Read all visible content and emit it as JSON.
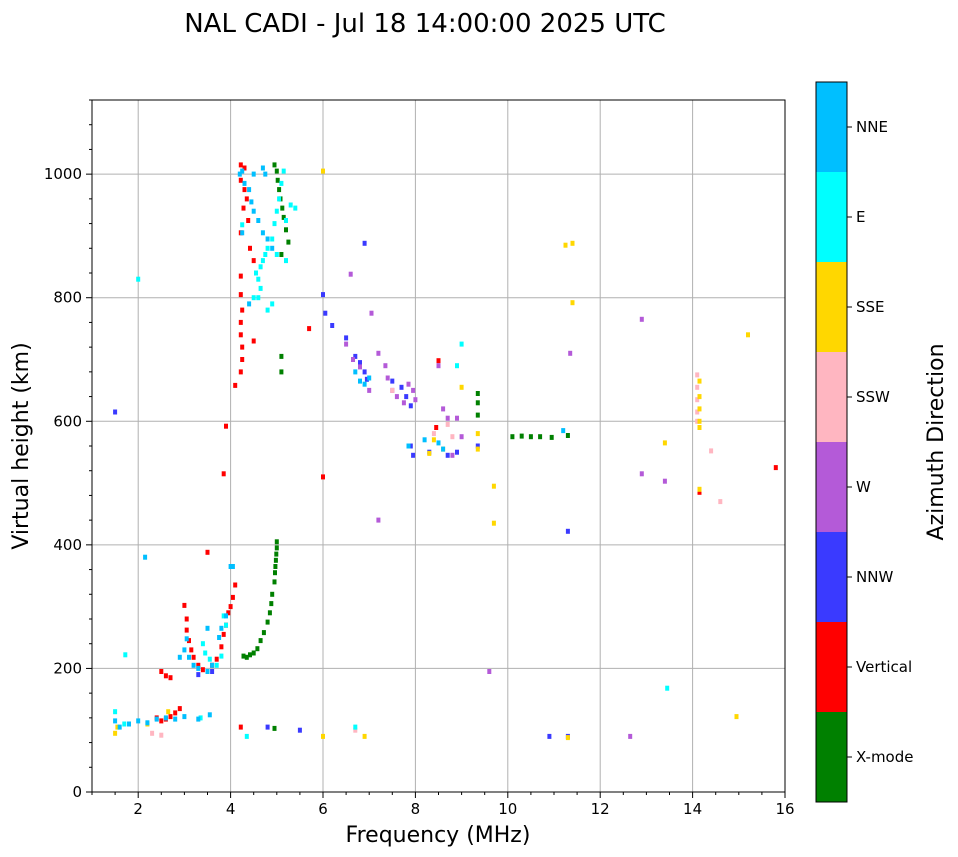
{
  "chart_data": {
    "type": "scatter",
    "title": "NAL CADI - Jul 18 14:00:00 2025 UTC",
    "xlabel": "Frequency (MHz)",
    "ylabel": "Virtual height (km)",
    "xlim": [
      1,
      16
    ],
    "ylim": [
      0,
      1120
    ],
    "x_ticks": [
      2,
      4,
      6,
      8,
      10,
      12,
      14,
      16
    ],
    "y_ticks": [
      0,
      200,
      400,
      600,
      800,
      1000
    ],
    "grid": true,
    "colorbar": {
      "label": "Azimuth Direction",
      "categories": [
        {
          "name": "X-mode",
          "color": "#008000"
        },
        {
          "name": "Vertical",
          "color": "#ff0000"
        },
        {
          "name": "NNW",
          "color": "#3a3aff"
        },
        {
          "name": "W",
          "color": "#b45ad8"
        },
        {
          "name": "SSW",
          "color": "#ffb6c1"
        },
        {
          "name": "SSE",
          "color": "#ffd700"
        },
        {
          "name": "E",
          "color": "#00ffff"
        },
        {
          "name": "NNE",
          "color": "#00bfff"
        }
      ]
    },
    "series": [
      {
        "name": "X-mode",
        "color": "#008000",
        "points": [
          [
            4.28,
            220
          ],
          [
            4.35,
            218
          ],
          [
            4.42,
            222
          ],
          [
            4.5,
            225
          ],
          [
            4.58,
            232
          ],
          [
            4.65,
            245
          ],
          [
            4.72,
            258
          ],
          [
            4.8,
            275
          ],
          [
            4.85,
            290
          ],
          [
            4.88,
            305
          ],
          [
            4.9,
            320
          ],
          [
            4.95,
            340
          ],
          [
            4.96,
            355
          ],
          [
            4.97,
            365
          ],
          [
            4.98,
            375
          ],
          [
            4.99,
            385
          ],
          [
            5.0,
            395
          ],
          [
            5.0,
            405
          ],
          [
            4.95,
            1015
          ],
          [
            5.0,
            1005
          ],
          [
            5.02,
            990
          ],
          [
            5.05,
            975
          ],
          [
            5.08,
            960
          ],
          [
            5.12,
            945
          ],
          [
            5.15,
            930
          ],
          [
            5.2,
            910
          ],
          [
            5.25,
            890
          ],
          [
            5.1,
            870
          ],
          [
            5.1,
            705
          ],
          [
            5.1,
            680
          ],
          [
            9.35,
            645
          ],
          [
            9.35,
            630
          ],
          [
            9.35,
            610
          ],
          [
            10.1,
            575
          ],
          [
            10.3,
            576
          ],
          [
            10.5,
            575
          ],
          [
            10.7,
            575
          ],
          [
            10.95,
            574
          ],
          [
            11.3,
            577
          ],
          [
            4.95,
            103
          ]
        ]
      },
      {
        "name": "Vertical",
        "color": "#ff0000",
        "points": [
          [
            4.22,
            1015
          ],
          [
            4.3,
            1010
          ],
          [
            4.22,
            990
          ],
          [
            4.3,
            975
          ],
          [
            4.35,
            960
          ],
          [
            4.28,
            945
          ],
          [
            4.38,
            925
          ],
          [
            4.22,
            905
          ],
          [
            4.42,
            880
          ],
          [
            4.5,
            860
          ],
          [
            4.22,
            835
          ],
          [
            4.22,
            805
          ],
          [
            4.25,
            780
          ],
          [
            4.22,
            760
          ],
          [
            4.22,
            740
          ],
          [
            4.25,
            720
          ],
          [
            4.25,
            700
          ],
          [
            4.22,
            680
          ],
          [
            4.1,
            658
          ],
          [
            4.5,
            730
          ],
          [
            5.7,
            750
          ],
          [
            3.9,
            592
          ],
          [
            3.85,
            515
          ],
          [
            6.0,
            510
          ],
          [
            3.0,
            302
          ],
          [
            3.05,
            280
          ],
          [
            3.05,
            262
          ],
          [
            3.1,
            245
          ],
          [
            3.15,
            230
          ],
          [
            3.2,
            218
          ],
          [
            3.3,
            205
          ],
          [
            3.4,
            198
          ],
          [
            3.5,
            195
          ],
          [
            3.6,
            205
          ],
          [
            3.7,
            215
          ],
          [
            3.8,
            235
          ],
          [
            3.85,
            255
          ],
          [
            3.9,
            270
          ],
          [
            3.95,
            290
          ],
          [
            4.0,
            300
          ],
          [
            4.05,
            315
          ],
          [
            4.1,
            335
          ],
          [
            3.5,
            388
          ],
          [
            2.5,
            195
          ],
          [
            2.6,
            188
          ],
          [
            2.7,
            185
          ],
          [
            2.4,
            120
          ],
          [
            2.5,
            115
          ],
          [
            2.6,
            118
          ],
          [
            2.7,
            122
          ],
          [
            2.8,
            128
          ],
          [
            2.9,
            135
          ],
          [
            4.22,
            105
          ],
          [
            8.45,
            590
          ],
          [
            8.5,
            698
          ],
          [
            14.15,
            485
          ],
          [
            15.8,
            525
          ]
        ]
      },
      {
        "name": "NNW",
        "color": "#3a3aff",
        "points": [
          [
            1.5,
            615
          ],
          [
            6.0,
            805
          ],
          [
            6.05,
            775
          ],
          [
            6.2,
            755
          ],
          [
            6.5,
            735
          ],
          [
            6.7,
            705
          ],
          [
            6.8,
            695
          ],
          [
            6.9,
            680
          ],
          [
            6.95,
            668
          ],
          [
            7.5,
            665
          ],
          [
            7.7,
            655
          ],
          [
            7.8,
            640
          ],
          [
            7.9,
            625
          ],
          [
            7.9,
            560
          ],
          [
            7.95,
            545
          ],
          [
            8.3,
            550
          ],
          [
            8.7,
            545
          ],
          [
            8.9,
            550
          ],
          [
            9.35,
            560
          ],
          [
            6.9,
            888
          ],
          [
            11.3,
            422
          ],
          [
            10.9,
            90
          ],
          [
            11.3,
            90
          ],
          [
            3.6,
            195
          ],
          [
            3.3,
            190
          ],
          [
            5.5,
            100
          ],
          [
            4.8,
            105
          ]
        ]
      },
      {
        "name": "W",
        "color": "#b45ad8",
        "points": [
          [
            6.5,
            725
          ],
          [
            6.65,
            700
          ],
          [
            6.8,
            688
          ],
          [
            7.0,
            650
          ],
          [
            7.2,
            710
          ],
          [
            7.35,
            690
          ],
          [
            7.4,
            670
          ],
          [
            7.5,
            650
          ],
          [
            7.6,
            640
          ],
          [
            7.75,
            630
          ],
          [
            7.85,
            660
          ],
          [
            7.95,
            650
          ],
          [
            8.0,
            635
          ],
          [
            8.5,
            690
          ],
          [
            8.6,
            620
          ],
          [
            8.7,
            605
          ],
          [
            8.9,
            605
          ],
          [
            9.0,
            575
          ],
          [
            8.8,
            545
          ],
          [
            6.6,
            838
          ],
          [
            7.05,
            775
          ],
          [
            7.2,
            440
          ],
          [
            12.9,
            765
          ],
          [
            12.9,
            515
          ],
          [
            13.4,
            503
          ],
          [
            12.65,
            90
          ],
          [
            9.6,
            195
          ],
          [
            11.35,
            710
          ]
        ]
      },
      {
        "name": "SSW",
        "color": "#ffb6c1",
        "points": [
          [
            14.1,
            675
          ],
          [
            14.1,
            655
          ],
          [
            14.1,
            635
          ],
          [
            14.1,
            615
          ],
          [
            14.1,
            600
          ],
          [
            14.4,
            552
          ],
          [
            14.6,
            470
          ],
          [
            8.8,
            575
          ],
          [
            8.4,
            580
          ],
          [
            8.7,
            595
          ],
          [
            2.3,
            95
          ],
          [
            2.5,
            92
          ],
          [
            7.5,
            650
          ],
          [
            6.7,
            100
          ]
        ]
      },
      {
        "name": "SSE",
        "color": "#ffd700",
        "points": [
          [
            14.15,
            665
          ],
          [
            14.15,
            640
          ],
          [
            14.15,
            620
          ],
          [
            14.15,
            600
          ],
          [
            14.15,
            590
          ],
          [
            14.15,
            490
          ],
          [
            15.2,
            740
          ],
          [
            13.4,
            565
          ],
          [
            14.95,
            122
          ],
          [
            11.25,
            885
          ],
          [
            11.4,
            888
          ],
          [
            11.4,
            792
          ],
          [
            8.4,
            570
          ],
          [
            8.6,
            555
          ],
          [
            9.35,
            555
          ],
          [
            9.35,
            580
          ],
          [
            9.0,
            655
          ],
          [
            6.0,
            1005
          ],
          [
            9.7,
            495
          ],
          [
            9.7,
            435
          ],
          [
            2.2,
            110
          ],
          [
            1.5,
            95
          ],
          [
            1.55,
            105
          ],
          [
            2.65,
            130
          ],
          [
            6.0,
            90
          ],
          [
            6.9,
            90
          ],
          [
            11.3,
            88
          ],
          [
            8.3,
            548
          ]
        ]
      },
      {
        "name": "E",
        "color": "#00ffff",
        "points": [
          [
            4.55,
            840
          ],
          [
            4.6,
            830
          ],
          [
            4.65,
            850
          ],
          [
            4.7,
            860
          ],
          [
            4.75,
            870
          ],
          [
            4.8,
            880
          ],
          [
            4.9,
            895
          ],
          [
            4.95,
            920
          ],
          [
            5.0,
            940
          ],
          [
            5.05,
            960
          ],
          [
            5.1,
            985
          ],
          [
            5.15,
            1005
          ],
          [
            4.6,
            800
          ],
          [
            4.8,
            780
          ],
          [
            4.5,
            800
          ],
          [
            4.65,
            815
          ],
          [
            4.9,
            790
          ],
          [
            5.3,
            950
          ],
          [
            5.2,
            925
          ],
          [
            5.4,
            945
          ],
          [
            5.0,
            870
          ],
          [
            5.2,
            860
          ],
          [
            4.25,
            918
          ],
          [
            3.85,
            285
          ],
          [
            3.9,
            270
          ],
          [
            3.4,
            240
          ],
          [
            3.45,
            225
          ],
          [
            3.55,
            215
          ],
          [
            3.7,
            205
          ],
          [
            3.8,
            220
          ],
          [
            3.35,
            120
          ],
          [
            8.9,
            690
          ],
          [
            9.0,
            725
          ],
          [
            13.45,
            168
          ],
          [
            1.5,
            130
          ],
          [
            1.7,
            110
          ],
          [
            2.0,
            830
          ],
          [
            1.72,
            222
          ],
          [
            6.7,
            105
          ],
          [
            4.35,
            90
          ]
        ]
      },
      {
        "name": "NNE",
        "color": "#00bfff",
        "points": [
          [
            4.2,
            1000
          ],
          [
            4.25,
            1005
          ],
          [
            4.3,
            985
          ],
          [
            4.4,
            975
          ],
          [
            4.45,
            955
          ],
          [
            4.5,
            940
          ],
          [
            4.6,
            925
          ],
          [
            4.7,
            905
          ],
          [
            4.8,
            895
          ],
          [
            4.9,
            880
          ],
          [
            4.5,
            1000
          ],
          [
            4.7,
            1010
          ],
          [
            4.25,
            905
          ],
          [
            4.4,
            790
          ],
          [
            6.7,
            680
          ],
          [
            6.8,
            665
          ],
          [
            6.9,
            660
          ],
          [
            7.0,
            670
          ],
          [
            7.85,
            560
          ],
          [
            8.2,
            570
          ],
          [
            8.5,
            565
          ],
          [
            8.6,
            555
          ],
          [
            11.2,
            585
          ],
          [
            2.9,
            218
          ],
          [
            3.0,
            230
          ],
          [
            3.05,
            248
          ],
          [
            3.1,
            218
          ],
          [
            3.2,
            205
          ],
          [
            3.3,
            200
          ],
          [
            3.5,
            195
          ],
          [
            3.6,
            205
          ],
          [
            3.75,
            250
          ],
          [
            3.8,
            265
          ],
          [
            3.9,
            285
          ],
          [
            4.05,
            365
          ],
          [
            3.5,
            265
          ],
          [
            1.5,
            115
          ],
          [
            1.6,
            105
          ],
          [
            1.8,
            110
          ],
          [
            2.0,
            115
          ],
          [
            2.2,
            112
          ],
          [
            2.4,
            118
          ],
          [
            2.6,
            120
          ],
          [
            2.8,
            118
          ],
          [
            3.0,
            122
          ],
          [
            3.3,
            118
          ],
          [
            2.15,
            380
          ],
          [
            3.55,
            125
          ],
          [
            4.75,
            1000
          ],
          [
            4.0,
            365
          ]
        ]
      }
    ]
  }
}
